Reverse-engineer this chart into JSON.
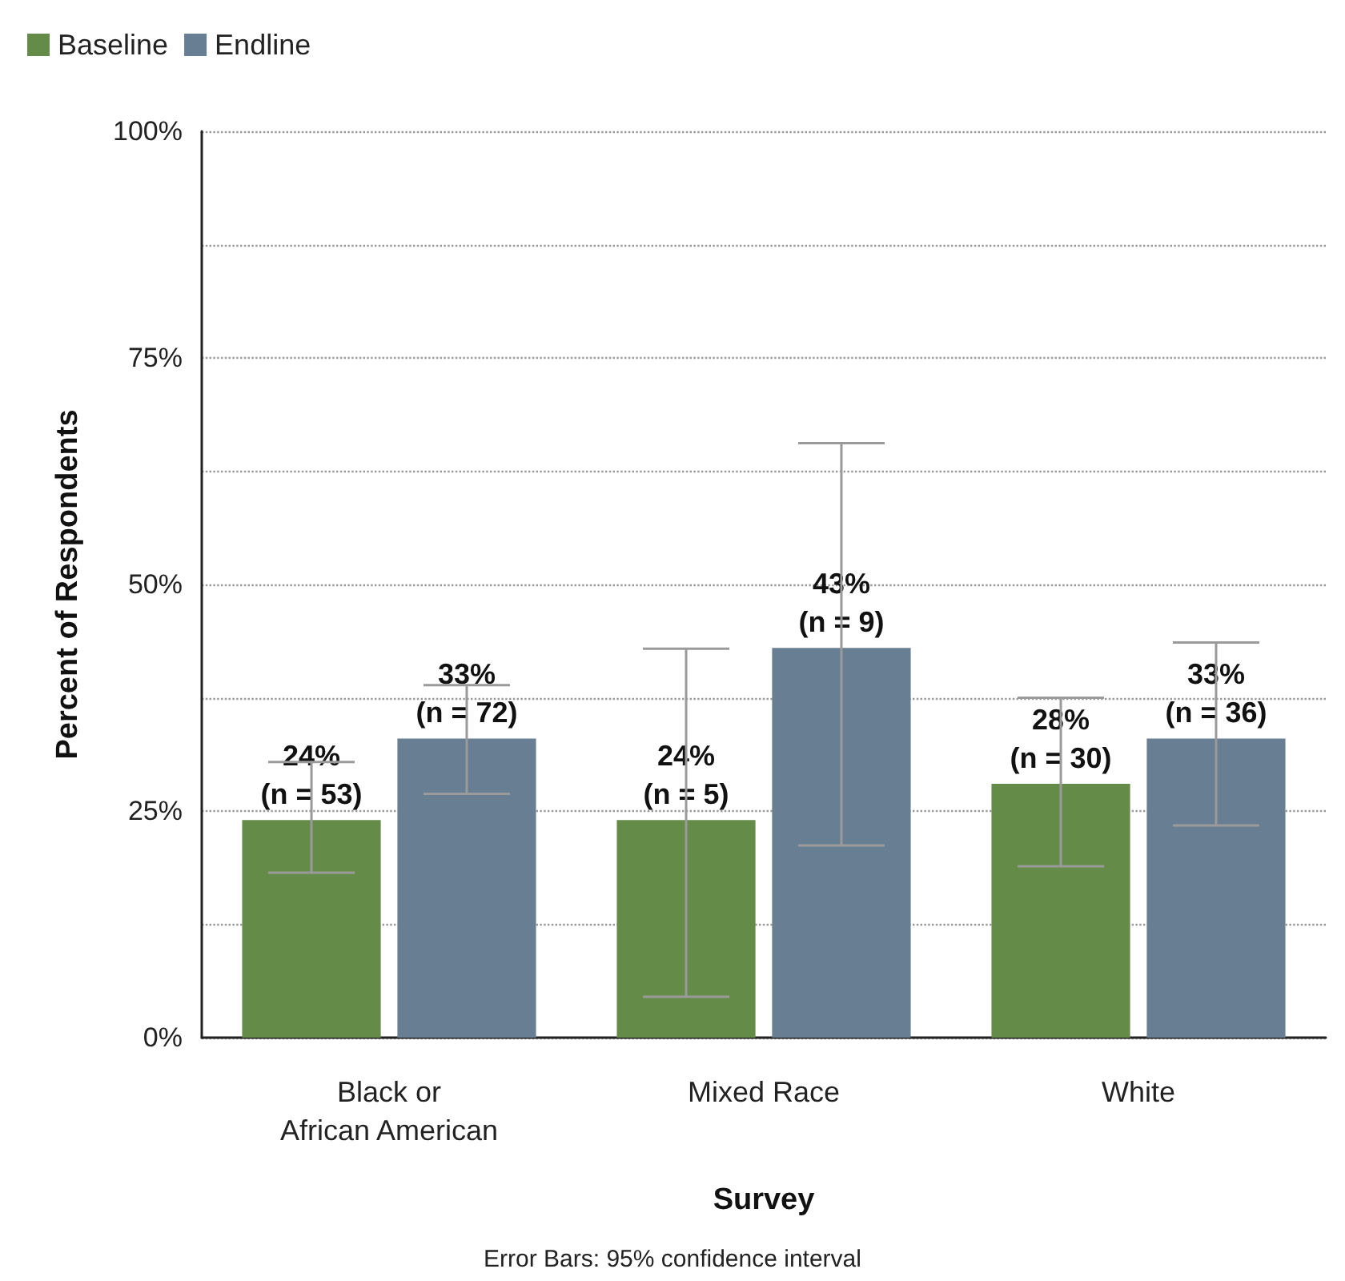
{
  "chart_data": {
    "type": "bar",
    "categories": [
      "Black or\nAfrican American",
      "Mixed Race",
      "White"
    ],
    "series": [
      {
        "name": "Baseline",
        "color": "#658b48",
        "values": [
          24,
          24,
          28
        ],
        "errors": [
          [
            18.2,
            30.4
          ],
          [
            4.5,
            42.9
          ],
          [
            18.9,
            37.5
          ]
        ],
        "value_labels": [
          "24%\n(n = 53)",
          "24%\n(n = 5)",
          "28%\n(n = 30)"
        ]
      },
      {
        "name": "Endline",
        "color": "#687e93",
        "values": [
          33,
          43,
          33
        ],
        "errors": [
          [
            26.9,
            38.9
          ],
          [
            21.2,
            65.6
          ],
          [
            23.4,
            43.6
          ]
        ],
        "value_labels": [
          "33%\n(n = 72)",
          "43%\n(n = 9)",
          "33%\n(n = 36)"
        ]
      }
    ],
    "xlabel": "Survey",
    "ylabel": "Percent of Respondents",
    "ylim": [
      0,
      100
    ],
    "yticks": [
      {
        "value": 0,
        "label": "0%"
      },
      {
        "value": 12.5,
        "label": null
      },
      {
        "value": 25,
        "label": "25%"
      },
      {
        "value": 37.5,
        "label": null
      },
      {
        "value": 50,
        "label": "50%"
      },
      {
        "value": 62.5,
        "label": null
      },
      {
        "value": 75,
        "label": "75%"
      },
      {
        "value": 87.5,
        "label": null
      },
      {
        "value": 100,
        "label": "100%"
      }
    ],
    "grid": "y",
    "legend": "top left",
    "annotations": [
      "Error Bars: 95% confidence interval"
    ]
  }
}
